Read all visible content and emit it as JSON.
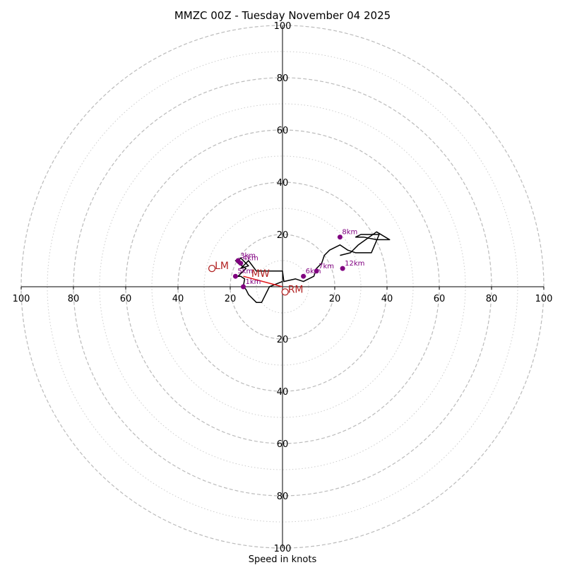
{
  "chart_data": {
    "type": "hodograph",
    "title": "MMZC 00Z - Tuesday November 04 2025",
    "xlabel": "Speed in knots",
    "max_speed": 100,
    "ring_labels": [
      "20",
      "40",
      "60",
      "80",
      "100"
    ],
    "ring_values": [
      20,
      40,
      60,
      80,
      100
    ],
    "minor_ring_values": [
      10,
      30,
      50,
      70,
      90
    ],
    "axis_range": [
      -100,
      100
    ],
    "hodograph": {
      "u": [
        0,
        -5,
        -8,
        -10,
        -13,
        -14,
        -15,
        -14.5,
        -16,
        -17,
        -16,
        -14,
        -17,
        -18,
        -17,
        -16,
        -13,
        -16,
        -13,
        -10,
        -8,
        -2,
        0,
        0.5,
        5,
        8,
        12,
        13,
        15,
        16,
        18,
        22,
        25,
        28,
        34,
        37,
        30,
        28,
        31,
        36,
        41,
        36,
        29,
        26,
        22
      ],
      "v": [
        2,
        0,
        -6,
        -6,
        -3,
        -1,
        0,
        3,
        4,
        4,
        5,
        7,
        9,
        10,
        10,
        11,
        8,
        7,
        10,
        6,
        6,
        6,
        6,
        2,
        3,
        2,
        4,
        7,
        9,
        12,
        14,
        16,
        14,
        13,
        13,
        20,
        20,
        19,
        19,
        18,
        18,
        21,
        16,
        13,
        12
      ]
    },
    "height_markers": [
      {
        "label": "1km",
        "u": -15,
        "v": 0
      },
      {
        "label": "3km",
        "u": -17,
        "v": 10
      },
      {
        "label": "4km",
        "u": -16,
        "v": 9
      },
      {
        "label": "5km",
        "u": -18,
        "v": 4
      },
      {
        "label": "6km",
        "u": 8,
        "v": 4
      },
      {
        "label": "7km",
        "u": 13,
        "v": 6
      },
      {
        "label": "8km",
        "u": 22,
        "v": 19
      },
      {
        "label": "12km",
        "u": 23,
        "v": 7
      }
    ],
    "storm_motion": [
      {
        "label": "LM",
        "u": -27,
        "v": 7
      },
      {
        "label": "RM",
        "u": 1,
        "v": -2
      },
      {
        "label": "MW",
        "u": -13,
        "v": 4
      }
    ],
    "storm_vector": {
      "from_u": -15,
      "from_v": 4,
      "to_u": 0,
      "to_v": 0
    },
    "colors": {
      "hodograph": "#000000",
      "marker": "#800080",
      "motion": "#b22222",
      "vector": "#e31a1c",
      "grid": "#bbbbbb"
    }
  }
}
